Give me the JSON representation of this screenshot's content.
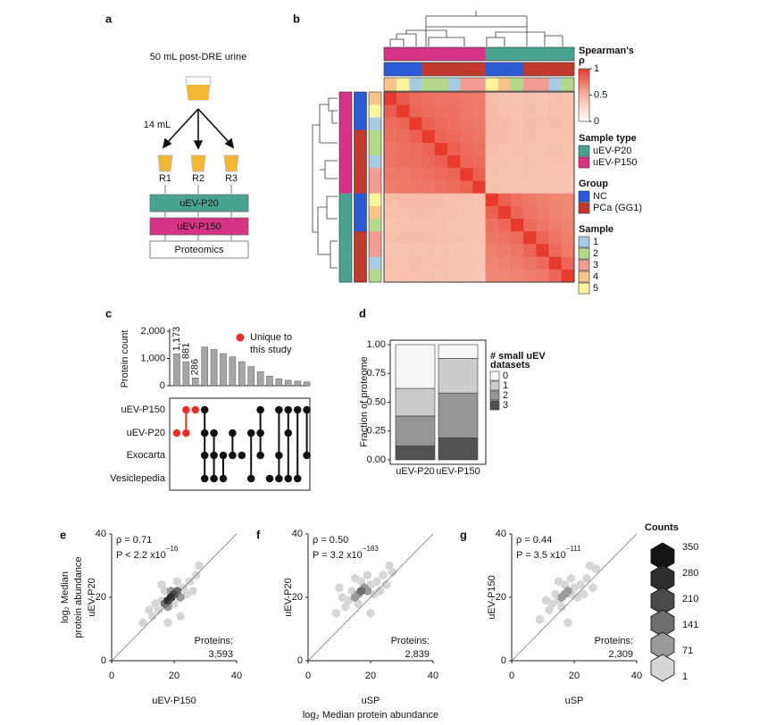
{
  "diagram": {
    "label": "a",
    "source": "50 mL post-DRE urine",
    "volume": "14 mL",
    "replicates": [
      "R1",
      "R2",
      "R3"
    ],
    "steps": [
      "uEV-P20",
      "uEV-P150",
      "Proteomics"
    ],
    "step_colors": [
      "#4aa391",
      "#d63384",
      "#ffffff"
    ]
  },
  "chart_data": [
    {
      "type": "heatmap",
      "panel": "b",
      "values": [
        [
          1,
          0.86,
          0.8,
          0.78,
          0.76,
          0.77,
          0.74,
          0.73,
          0.44,
          0.42,
          0.41,
          0.43,
          0.4,
          0.42,
          0.41
        ],
        [
          0.86,
          1,
          0.82,
          0.8,
          0.78,
          0.78,
          0.75,
          0.74,
          0.45,
          0.43,
          0.42,
          0.44,
          0.41,
          0.43,
          0.42
        ],
        [
          0.8,
          0.82,
          1,
          0.84,
          0.8,
          0.79,
          0.76,
          0.75,
          0.46,
          0.44,
          0.43,
          0.45,
          0.42,
          0.44,
          0.43
        ],
        [
          0.78,
          0.8,
          0.84,
          1,
          0.83,
          0.81,
          0.78,
          0.76,
          0.45,
          0.44,
          0.43,
          0.44,
          0.42,
          0.43,
          0.42
        ],
        [
          0.76,
          0.78,
          0.8,
          0.83,
          1,
          0.85,
          0.8,
          0.78,
          0.44,
          0.43,
          0.42,
          0.43,
          0.41,
          0.42,
          0.41
        ],
        [
          0.77,
          0.78,
          0.79,
          0.81,
          0.85,
          1,
          0.82,
          0.8,
          0.43,
          0.42,
          0.41,
          0.42,
          0.4,
          0.41,
          0.4
        ],
        [
          0.74,
          0.75,
          0.76,
          0.78,
          0.8,
          0.82,
          1,
          0.84,
          0.42,
          0.41,
          0.4,
          0.41,
          0.39,
          0.4,
          0.39
        ],
        [
          0.73,
          0.74,
          0.75,
          0.76,
          0.78,
          0.8,
          0.84,
          1,
          0.41,
          0.4,
          0.39,
          0.4,
          0.38,
          0.39,
          0.38
        ],
        [
          0.44,
          0.45,
          0.46,
          0.45,
          0.44,
          0.43,
          0.42,
          0.41,
          1,
          0.84,
          0.78,
          0.75,
          0.72,
          0.7,
          0.68
        ],
        [
          0.42,
          0.43,
          0.44,
          0.44,
          0.43,
          0.42,
          0.41,
          0.4,
          0.84,
          1,
          0.82,
          0.77,
          0.74,
          0.71,
          0.69
        ],
        [
          0.41,
          0.42,
          0.43,
          0.43,
          0.42,
          0.41,
          0.4,
          0.39,
          0.78,
          0.82,
          1,
          0.8,
          0.76,
          0.73,
          0.7
        ],
        [
          0.43,
          0.44,
          0.45,
          0.44,
          0.43,
          0.42,
          0.41,
          0.4,
          0.75,
          0.77,
          0.8,
          1,
          0.83,
          0.76,
          0.72
        ],
        [
          0.4,
          0.41,
          0.42,
          0.42,
          0.41,
          0.4,
          0.39,
          0.38,
          0.72,
          0.74,
          0.76,
          0.83,
          1,
          0.8,
          0.74
        ],
        [
          0.42,
          0.43,
          0.44,
          0.43,
          0.42,
          0.41,
          0.4,
          0.39,
          0.7,
          0.71,
          0.73,
          0.76,
          0.8,
          1,
          0.82
        ],
        [
          0.41,
          0.42,
          0.43,
          0.42,
          0.41,
          0.4,
          0.39,
          0.38,
          0.68,
          0.69,
          0.7,
          0.72,
          0.74,
          0.82,
          1
        ]
      ],
      "clim": [
        0,
        1
      ],
      "cticks": [
        0,
        0.5,
        1
      ],
      "colors": [
        "#ffffff",
        "#f6b49f",
        "#e63b2e"
      ],
      "colorbar_title": [
        "Spearman's",
        "ρ"
      ],
      "annotations": {
        "sample_type": [
          "uEV-P150",
          "uEV-P150",
          "uEV-P150",
          "uEV-P150",
          "uEV-P150",
          "uEV-P150",
          "uEV-P150",
          "uEV-P150",
          "uEV-P20",
          "uEV-P20",
          "uEV-P20",
          "uEV-P20",
          "uEV-P20",
          "uEV-P20",
          "uEV-P20"
        ],
        "group": [
          "NC",
          "NC",
          "NC",
          "PCa (GG1)",
          "PCa (GG1)",
          "PCa (GG1)",
          "PCa (GG1)",
          "PCa (GG1)",
          "NC",
          "NC",
          "NC",
          "PCa (GG1)",
          "PCa (GG1)",
          "PCa (GG1)",
          "PCa (GG1)"
        ],
        "sample": [
          "4",
          "5",
          "1",
          "2",
          "2",
          "1",
          "3",
          "3",
          "5",
          "4",
          "2",
          "3",
          "3",
          "1",
          "2"
        ]
      },
      "legends": [
        {
          "key": "sample_type",
          "title": "Sample type",
          "items": [
            {
              "name": "uEV-P20",
              "color": "#4aa391"
            },
            {
              "name": "uEV-P150",
              "color": "#d63384"
            }
          ]
        },
        {
          "key": "group",
          "title": "Group",
          "items": [
            {
              "name": "NC",
              "color": "#2b5bd7"
            },
            {
              "name": "PCa (GG1)",
              "color": "#c0392b"
            }
          ]
        },
        {
          "key": "sample",
          "title": "Sample",
          "items": [
            {
              "name": "1",
              "color": "#a6cbe3"
            },
            {
              "name": "2",
              "color": "#b5d98a"
            },
            {
              "name": "3",
              "color": "#f29c93"
            },
            {
              "name": "4",
              "color": "#f7c48a"
            },
            {
              "name": "5",
              "color": "#fbf49c"
            }
          ]
        }
      ]
    },
    {
      "type": "upset",
      "panel": "c",
      "ylabel": "Protein count",
      "ylim": [
        0,
        2000
      ],
      "yticks": [
        0,
        {
          "value": 1000,
          "label": "1,000"
        },
        {
          "value": 2000,
          "label": "2,000"
        }
      ],
      "values": [
        1173,
        881,
        286,
        1420,
        1330,
        1180,
        1060,
        880,
        700,
        520,
        350,
        260,
        200,
        170,
        140
      ],
      "value_labels": [
        "1,173",
        "881",
        "286",
        null,
        null,
        null,
        null,
        null,
        null,
        null,
        null,
        null,
        null,
        null,
        null
      ],
      "sets": [
        "uEV-P150",
        "uEV-P20",
        "Exocarta",
        "Vesiclepedia"
      ],
      "study_sets": [
        "uEV-P150",
        "uEV-P20"
      ],
      "membership": [
        [
          0,
          1,
          0,
          0
        ],
        [
          1,
          1,
          0,
          0
        ],
        [
          1,
          0,
          0,
          0
        ],
        [
          1,
          1,
          1,
          1
        ],
        [
          0,
          1,
          1,
          1
        ],
        [
          0,
          0,
          1,
          1
        ],
        [
          0,
          1,
          1,
          0
        ],
        [
          0,
          0,
          1,
          0
        ],
        [
          0,
          1,
          0,
          1
        ],
        [
          1,
          1,
          1,
          0
        ],
        [
          0,
          0,
          0,
          1
        ],
        [
          1,
          0,
          1,
          1
        ],
        [
          1,
          1,
          0,
          1
        ],
        [
          1,
          0,
          0,
          1
        ],
        [
          1,
          0,
          1,
          0
        ]
      ],
      "bar_color": "#a6a6a6",
      "dot_color": "#111111",
      "legend": {
        "name": [
          "Unique to",
          "this study"
        ],
        "color": "#e8302a"
      }
    },
    {
      "type": "stacked_bar",
      "panel": "d",
      "ylabel": "Fraction of proteome",
      "categories": [
        "uEV-P20",
        "uEV-P150"
      ],
      "ylim": [
        0,
        1
      ],
      "yticks": [
        {
          "value": 0,
          "label": "0.00"
        },
        0.25,
        {
          "value": 0.5,
          "label": "0.50"
        },
        0.75,
        {
          "value": 1,
          "label": "1.00"
        }
      ],
      "legend_title": [
        "# small uEV",
        "datasets"
      ],
      "series": [
        {
          "name": "0",
          "color": "#f7f7f7",
          "values": [
            0.38,
            0.12
          ]
        },
        {
          "name": "1",
          "color": "#cccccc",
          "values": [
            0.24,
            0.3
          ]
        },
        {
          "name": "2",
          "color": "#969696",
          "values": [
            0.26,
            0.39
          ]
        },
        {
          "name": "3",
          "color": "#525252",
          "values": [
            0.12,
            0.19
          ]
        }
      ]
    },
    {
      "type": "hexbin",
      "panel": "e",
      "ylabel": [
        "log₂ Median",
        "protein abundance",
        "uEV-P20"
      ],
      "xlabel": "uEV-P150",
      "xlim": [
        0,
        40
      ],
      "ylim": [
        0,
        40
      ],
      "xticks": [
        0,
        20,
        40
      ],
      "yticks": [
        0,
        20,
        40
      ],
      "rho": "ρ = 0.71",
      "p": "P < 2.2 x10",
      "p_exp": "−16",
      "n_title": "Proteins:",
      "n": {
        "value": 3593,
        "label": "3,593"
      },
      "x": [
        19,
        18,
        20,
        17,
        21,
        19,
        18,
        22,
        16,
        20,
        23,
        15,
        17,
        24,
        14,
        21,
        25,
        13,
        16,
        26,
        12,
        27,
        10,
        22,
        28,
        18
      ],
      "y": [
        20,
        19,
        21,
        18,
        22,
        22,
        17,
        20,
        19,
        18,
        23,
        16,
        22,
        21,
        18,
        25,
        25,
        14,
        24,
        22,
        16,
        27,
        12,
        14,
        30,
        12
      ],
      "counts": [
        330,
        300,
        260,
        190,
        180,
        120,
        110,
        90,
        60,
        70,
        40,
        30,
        30,
        20,
        12,
        15,
        10,
        6,
        8,
        5,
        3,
        2,
        1,
        2,
        1,
        1
      ]
    },
    {
      "type": "hexbin",
      "panel": "f",
      "ylabel": [
        "uEV-P20"
      ],
      "xlabel": "uSP",
      "xlim": [
        0,
        40
      ],
      "ylim": [
        0,
        40
      ],
      "xticks": [
        0,
        20,
        40
      ],
      "yticks": [
        0,
        20,
        40
      ],
      "rho": "ρ = 0.50",
      "p": "P = 3.2 x10",
      "p_exp": "−183",
      "n_title": "Proteins:",
      "n": {
        "value": 2839,
        "label": "2,839"
      },
      "x": [
        17,
        16,
        18,
        15,
        19,
        17,
        20,
        14,
        16,
        21,
        13,
        19,
        22,
        12,
        23,
        15,
        24,
        11,
        25,
        9,
        27,
        20,
        26,
        10
      ],
      "y": [
        22,
        21,
        23,
        20,
        22,
        25,
        24,
        22,
        18,
        21,
        19,
        27,
        25,
        17,
        22,
        26,
        27,
        20,
        24,
        15,
        28,
        15,
        30,
        23
      ],
      "counts": [
        150,
        140,
        120,
        90,
        100,
        60,
        50,
        40,
        35,
        25,
        20,
        20,
        15,
        10,
        8,
        8,
        5,
        4,
        3,
        2,
        1,
        2,
        1,
        1
      ]
    },
    {
      "type": "hexbin",
      "panel": "g",
      "ylabel": [
        "uEV-P150"
      ],
      "xlabel": "uSP",
      "xlim": [
        0,
        40
      ],
      "ylim": [
        0,
        40
      ],
      "xticks": [
        0,
        20,
        40
      ],
      "yticks": [
        0,
        20,
        40
      ],
      "rho": "ρ = 0.44",
      "p": "P = 3.5 x10",
      "p_exp": "−111",
      "n_title": "Proteins:",
      "n": {
        "value": 2309,
        "label": "2,309"
      },
      "x": [
        17,
        16,
        18,
        15,
        19,
        17,
        20,
        14,
        16,
        21,
        13,
        19,
        22,
        12,
        23,
        15,
        24,
        11,
        26,
        9,
        27,
        18,
        25
      ],
      "y": [
        21,
        20,
        22,
        19,
        21,
        24,
        23,
        21,
        17,
        20,
        18,
        26,
        24,
        16,
        21,
        25,
        26,
        19,
        23,
        13,
        29,
        12,
        30
      ],
      "counts": [
        120,
        110,
        100,
        60,
        70,
        40,
        35,
        25,
        20,
        15,
        12,
        12,
        10,
        6,
        5,
        5,
        3,
        2,
        2,
        1,
        1,
        1,
        1
      ]
    }
  ],
  "counts_legend": {
    "title": "Counts",
    "levels": [
      350,
      280,
      210,
      141,
      71,
      1
    ],
    "colors": [
      "#141414",
      "#2e2e2e",
      "#4a4a4a",
      "#6e6e6e",
      "#9a9a9a",
      "#d6d6d6"
    ]
  },
  "shared_xlabel": "log₂ Median protein abundance"
}
